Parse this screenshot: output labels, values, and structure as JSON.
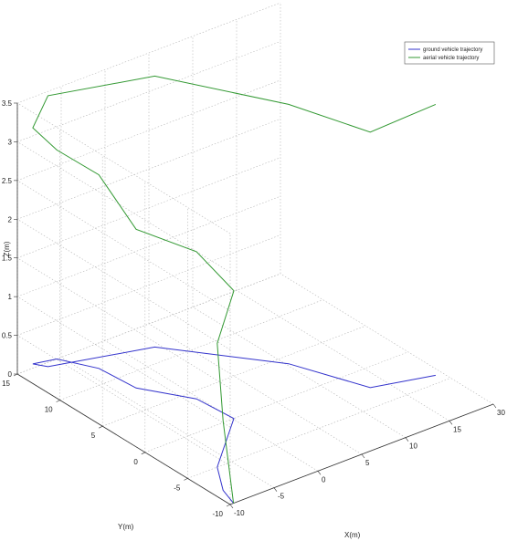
{
  "chart_data": {
    "type": "line",
    "projection": "3d",
    "title": "",
    "xlabel": "X(m)",
    "ylabel": "Y(m)",
    "zlabel": "Z(m)",
    "xlim": [
      -10,
      30
    ],
    "ylim": [
      -10,
      15
    ],
    "zlim": [
      0,
      3.5
    ],
    "x_ticks": [
      "-10",
      "-5",
      "0",
      "5",
      "10",
      "15",
      "30"
    ],
    "y_ticks": [
      "-10",
      "-5",
      "0",
      "5",
      "10",
      "15"
    ],
    "z_ticks": [
      "0",
      "0.5",
      "1",
      "1.5",
      "2",
      "2.5",
      "3",
      "3.5"
    ],
    "grid": true,
    "legend_position": "top-right",
    "series": [
      {
        "name": "ground vehicle trajectory",
        "color": "#3333cc",
        "x": [
          -9.5,
          -8.5,
          -5.5,
          3.5,
          3.0,
          -1.0,
          -1.5,
          -4.0,
          -7.0,
          -6.0,
          7.0,
          17.0,
          21.0,
          29.0
        ],
        "y": [
          -10.0,
          -8.0,
          -5.0,
          0.0,
          4.0,
          8.0,
          12.0,
          15.0,
          15.5,
          14.5,
          12.0,
          4.0,
          -2.5,
          -4.0
        ],
        "z": [
          0,
          0,
          0,
          0,
          0,
          0,
          0,
          0,
          0,
          0,
          0,
          0,
          0,
          0
        ]
      },
      {
        "name": "aerial vehicle trajectory",
        "color": "#339933",
        "x": [
          -9.5,
          -8.5,
          -5.5,
          3.5,
          3.0,
          -1.0,
          -1.5,
          -4.0,
          -7.0,
          -6.0,
          7.0,
          17.0,
          21.0,
          29.0
        ],
        "y": [
          -10.0,
          -8.0,
          -5.0,
          0.0,
          4.0,
          8.0,
          12.0,
          15.0,
          15.5,
          14.5,
          12.0,
          4.0,
          -2.5,
          -4.0
        ],
        "z": [
          0.0,
          0.9,
          1.6,
          1.65,
          1.9,
          2.05,
          2.5,
          2.7,
          3.05,
          3.5,
          3.5,
          3.35,
          3.3,
          3.5
        ]
      }
    ]
  }
}
